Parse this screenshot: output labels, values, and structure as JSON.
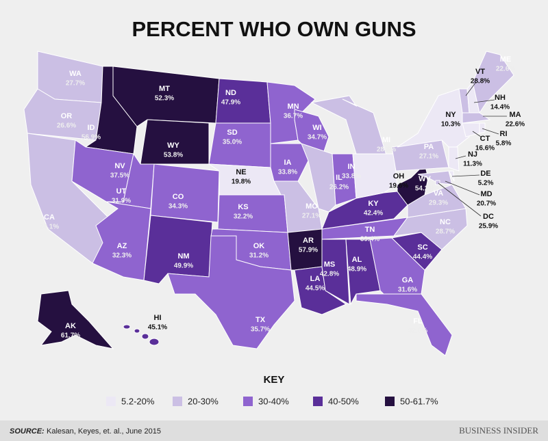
{
  "title": "PERCENT WHO OWN GUNS",
  "states": [
    {
      "abbr": "WA",
      "label": "27.7%",
      "color": "#cbbfe4"
    },
    {
      "abbr": "OR",
      "label": "26.6%",
      "color": "#cbbfe4"
    },
    {
      "abbr": "CA",
      "label": "20.1%",
      "color": "#cbbfe4"
    },
    {
      "abbr": "ID",
      "label": "56.9%",
      "color": "#251040"
    },
    {
      "abbr": "NV",
      "label": "37.5%",
      "color": "#8f64cf"
    },
    {
      "abbr": "MT",
      "label": "52.3%",
      "color": "#251040"
    },
    {
      "abbr": "WY",
      "label": "53.8%",
      "color": "#251040"
    },
    {
      "abbr": "UT",
      "label": "31.9%",
      "color": "#8f64cf"
    },
    {
      "abbr": "CO",
      "label": "34.3%",
      "color": "#8f64cf"
    },
    {
      "abbr": "AZ",
      "label": "32.3%",
      "color": "#8f64cf"
    },
    {
      "abbr": "NM",
      "label": "49.9%",
      "color": "#5a2f99"
    },
    {
      "abbr": "ND",
      "label": "47.9%",
      "color": "#5a2f99"
    },
    {
      "abbr": "SD",
      "label": "35.0%",
      "color": "#8f64cf"
    },
    {
      "abbr": "NE",
      "label": "19.8%",
      "color": "#ece8f5"
    },
    {
      "abbr": "KS",
      "label": "32.2%",
      "color": "#8f64cf"
    },
    {
      "abbr": "OK",
      "label": "31.2%",
      "color": "#8f64cf"
    },
    {
      "abbr": "TX",
      "label": "35.7%",
      "color": "#8f64cf"
    },
    {
      "abbr": "MN",
      "label": "36.7%",
      "color": "#8f64cf"
    },
    {
      "abbr": "IA",
      "label": "33.8%",
      "color": "#8f64cf"
    },
    {
      "abbr": "MO",
      "label": "27.1%",
      "color": "#cbbfe4"
    },
    {
      "abbr": "WI",
      "label": "34.7%",
      "color": "#8f64cf"
    },
    {
      "abbr": "IL",
      "label": "26.2%",
      "color": "#cbbfe4"
    },
    {
      "abbr": "AR",
      "label": "57.9%",
      "color": "#251040"
    },
    {
      "abbr": "LA",
      "label": "44.5%",
      "color": "#5a2f99"
    },
    {
      "abbr": "MS",
      "label": "42.8%",
      "color": "#5a2f99"
    },
    {
      "abbr": "AL",
      "label": "48.9%",
      "color": "#5a2f99"
    },
    {
      "abbr": "TN",
      "label": "39.4%",
      "color": "#8f64cf"
    },
    {
      "abbr": "KY",
      "label": "42.4%",
      "color": "#5a2f99"
    },
    {
      "abbr": "IN",
      "label": "33.8%",
      "color": "#8f64cf"
    },
    {
      "abbr": "MI",
      "label": "28.8%",
      "color": "#cbbfe4"
    },
    {
      "abbr": "OH",
      "label": "19.6%",
      "color": "#ece8f5"
    },
    {
      "abbr": "GA",
      "label": "31.6%",
      "color": "#8f64cf"
    },
    {
      "abbr": "FL",
      "label": "32.5%",
      "color": "#8f64cf"
    },
    {
      "abbr": "SC",
      "label": "44.4%",
      "color": "#5a2f99"
    },
    {
      "abbr": "NC",
      "label": "28.7%",
      "color": "#cbbfe4"
    },
    {
      "abbr": "VA",
      "label": "29.3%",
      "color": "#cbbfe4"
    },
    {
      "abbr": "WV",
      "label": "54.2%",
      "color": "#251040"
    },
    {
      "abbr": "PA",
      "label": "27.1%",
      "color": "#cbbfe4"
    },
    {
      "abbr": "NY",
      "label": "10.3%",
      "color": "#ece8f5"
    },
    {
      "abbr": "VT",
      "label": "28.8%",
      "color": "#cbbfe4"
    },
    {
      "abbr": "NH",
      "label": "14.4%",
      "color": "#ece8f5"
    },
    {
      "abbr": "ME",
      "label": "22.6%",
      "color": "#cbbfe4"
    },
    {
      "abbr": "MA",
      "label": "22.6%",
      "color": "#cbbfe4"
    },
    {
      "abbr": "RI",
      "label": "5.8%",
      "color": "#ece8f5"
    },
    {
      "abbr": "CT",
      "label": "16.6%",
      "color": "#ece8f5"
    },
    {
      "abbr": "NJ",
      "label": "11.3%",
      "color": "#ece8f5"
    },
    {
      "abbr": "DE",
      "label": "5.2%",
      "color": "#ece8f5"
    },
    {
      "abbr": "MD",
      "label": "20.7%",
      "color": "#cbbfe4"
    },
    {
      "abbr": "DC",
      "label": "25.9%",
      "color": "#cbbfe4"
    },
    {
      "abbr": "AK",
      "label": "61.7%",
      "color": "#251040"
    },
    {
      "abbr": "HI",
      "label": "45.1%",
      "color": "#5a2f99"
    }
  ],
  "key": {
    "title": "KEY",
    "items": [
      {
        "label": "5.2-20%",
        "color": "#ece8f5"
      },
      {
        "label": "20-30%",
        "color": "#cbbfe4"
      },
      {
        "label": "30-40%",
        "color": "#8f64cf"
      },
      {
        "label": "40-50%",
        "color": "#5a2f99"
      },
      {
        "label": "50-61.7%",
        "color": "#251040"
      }
    ]
  },
  "footer": {
    "source_label": "SOURCE:",
    "source": "Kalesan, Keyes, et. al., June 2015",
    "brand": "BUSINESS INSIDER"
  }
}
